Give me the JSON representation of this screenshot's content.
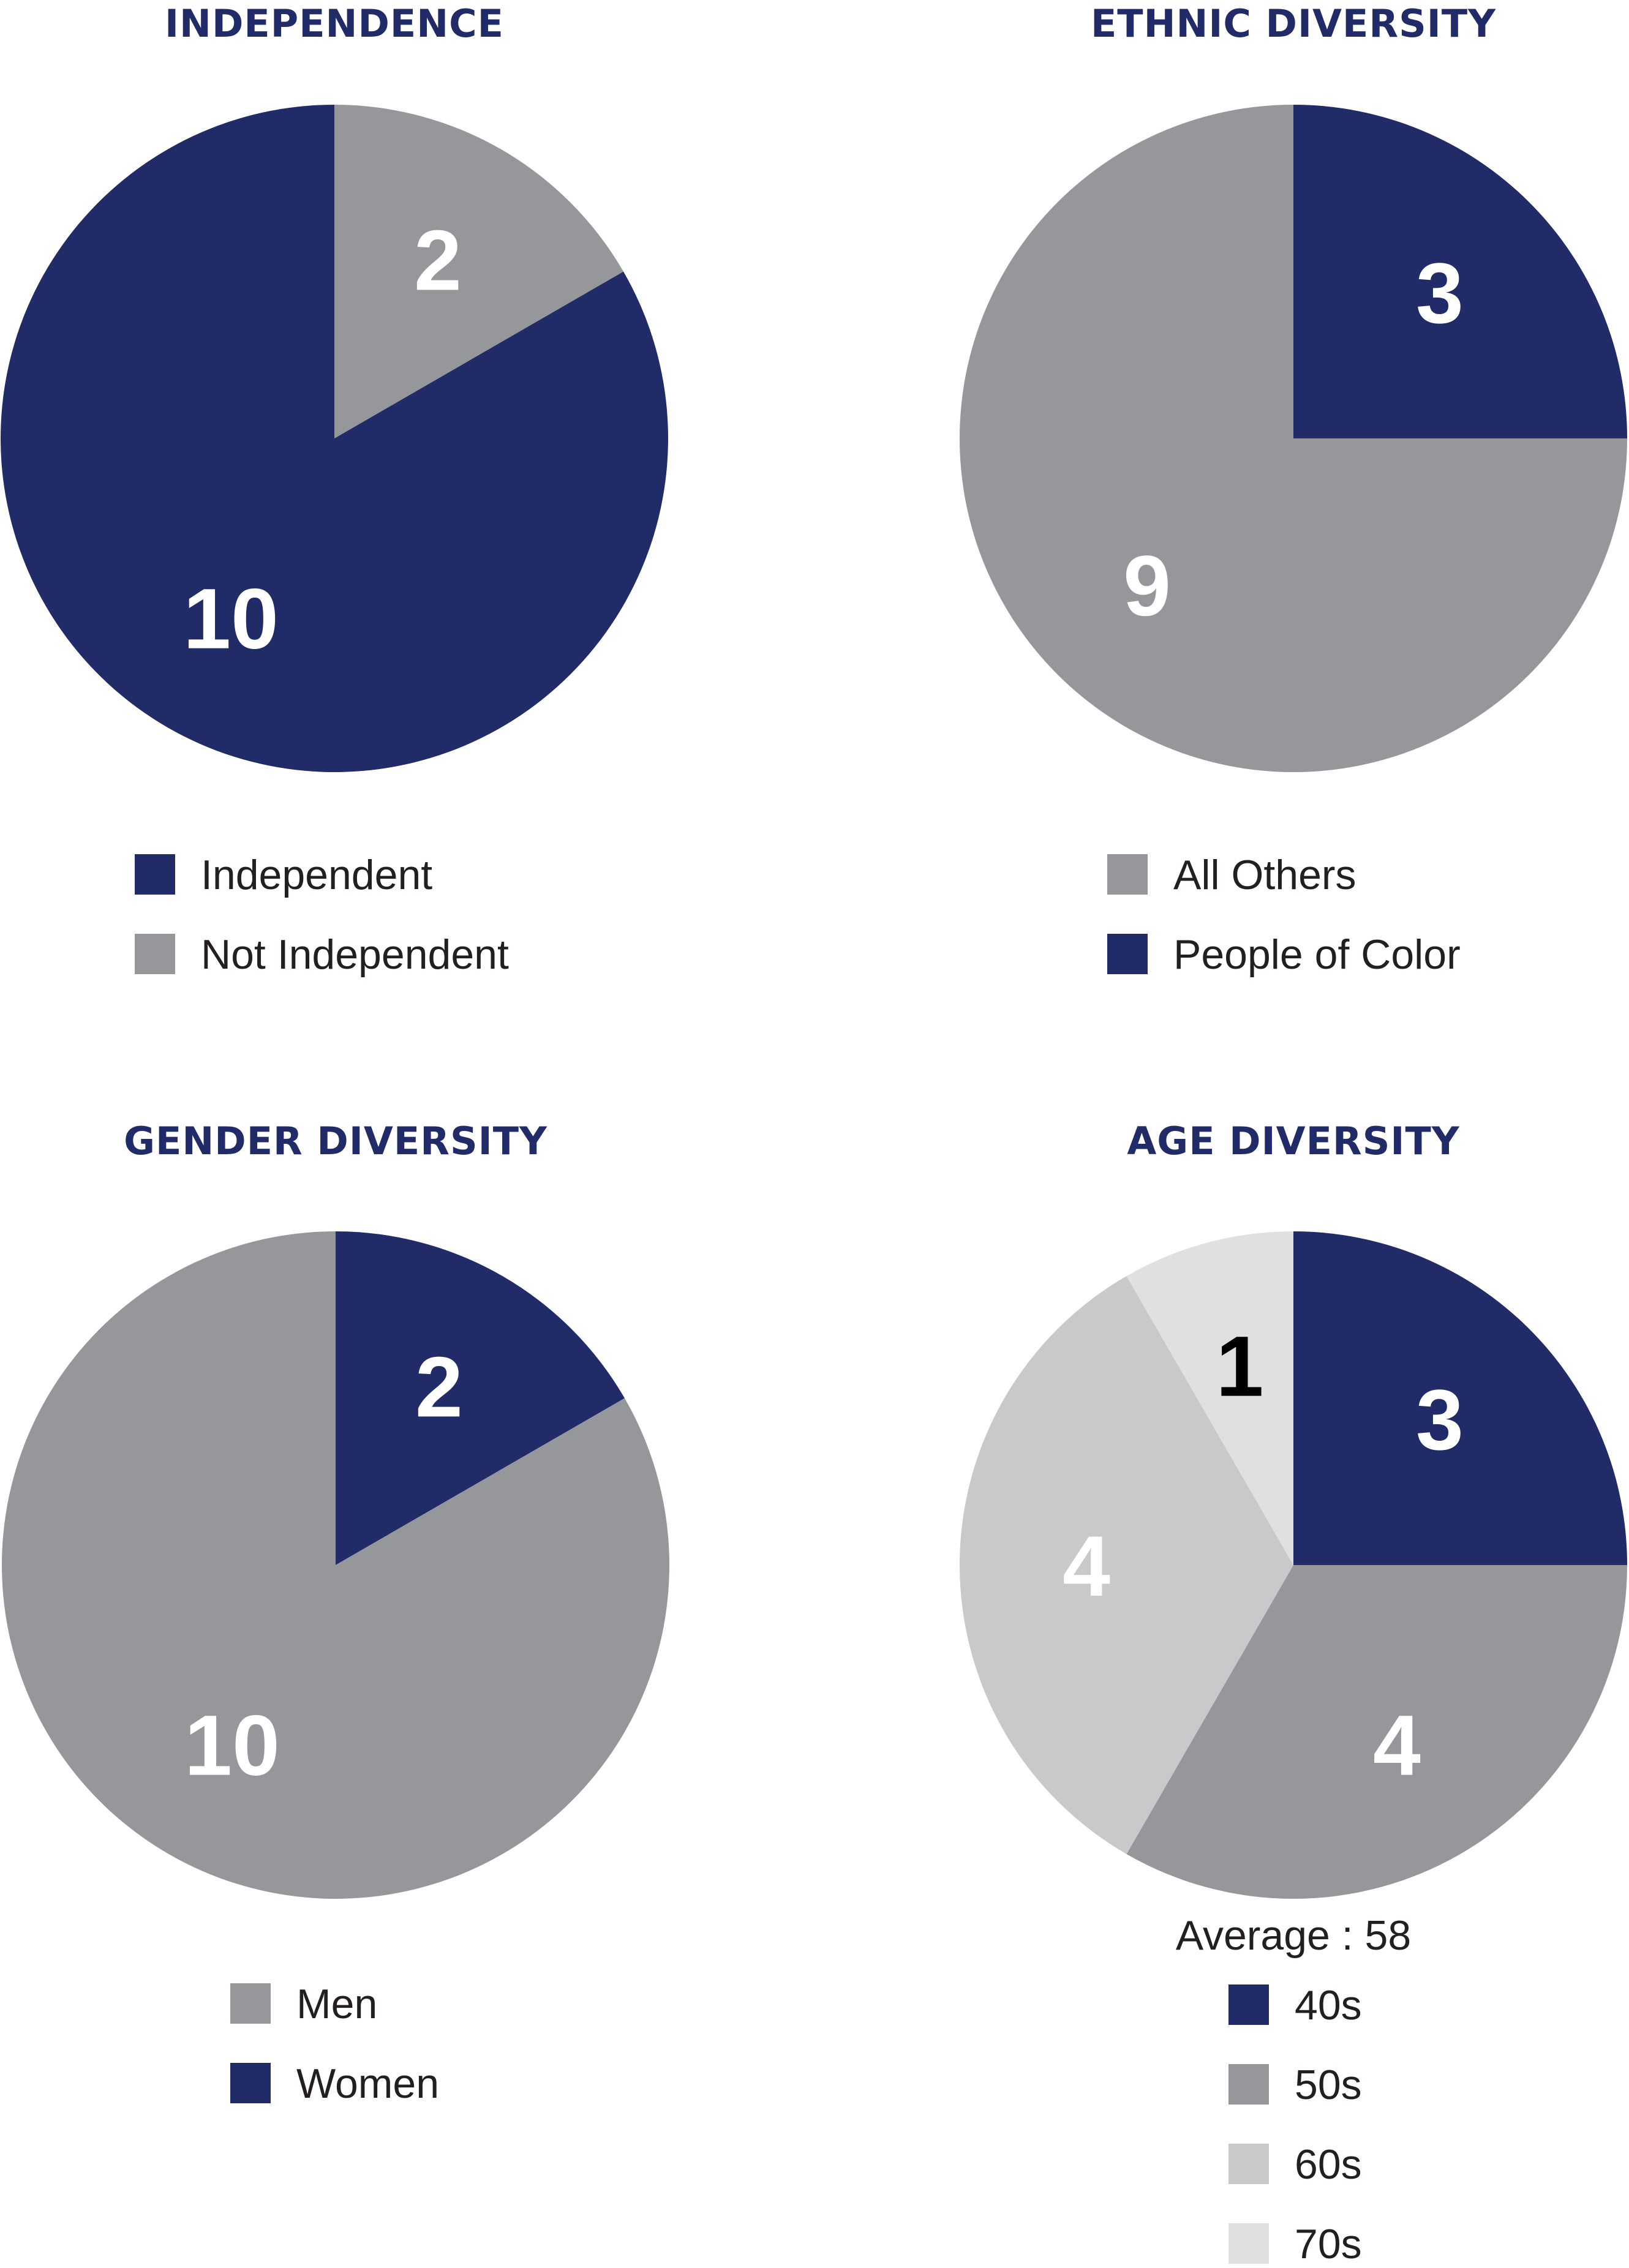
{
  "colors": {
    "navy": "#212b68",
    "gray": "#96979a",
    "light_gray": "#c8c9cb",
    "lighter_gray": "#e0e0e2",
    "label_white": "#ffffff",
    "label_black": "#000000",
    "title": "#212b68",
    "text": "#231f20"
  },
  "chart_data": [
    {
      "id": "independence",
      "type": "pie",
      "title": "INDEPENDENCE",
      "slices": [
        {
          "label": "Not Independent",
          "value": 2,
          "color": "#96979a",
          "label_color": "#ffffff"
        },
        {
          "label": "Independent",
          "value": 10,
          "color": "#212b68",
          "label_color": "#ffffff"
        }
      ],
      "legend": [
        {
          "label": "Independent",
          "color": "#212b68"
        },
        {
          "label": "Not Independent",
          "color": "#96979a"
        }
      ]
    },
    {
      "id": "ethnic",
      "type": "pie",
      "title": "ETHNIC DIVERSITY",
      "slices": [
        {
          "label": "People of Color",
          "value": 3,
          "color": "#212b68",
          "label_color": "#ffffff"
        },
        {
          "label": "All Others",
          "value": 9,
          "color": "#96979a",
          "label_color": "#ffffff"
        }
      ],
      "legend": [
        {
          "label": "All Others",
          "color": "#96979a"
        },
        {
          "label": "People of Color",
          "color": "#212b68"
        }
      ]
    },
    {
      "id": "gender",
      "type": "pie",
      "title": "GENDER DIVERSITY",
      "slices": [
        {
          "label": "Women",
          "value": 2,
          "color": "#212b68",
          "label_color": "#ffffff"
        },
        {
          "label": "Men",
          "value": 10,
          "color": "#96979a",
          "label_color": "#ffffff"
        }
      ],
      "legend": [
        {
          "label": "Men",
          "color": "#96979a"
        },
        {
          "label": "Women",
          "color": "#212b68"
        }
      ]
    },
    {
      "id": "age",
      "type": "pie",
      "title": "AGE DIVERSITY",
      "note": "Average : 58",
      "slices": [
        {
          "label": "40s",
          "value": 3,
          "color": "#212b68",
          "label_color": "#ffffff"
        },
        {
          "label": "50s",
          "value": 4,
          "color": "#96979a",
          "label_color": "#ffffff"
        },
        {
          "label": "60s",
          "value": 4,
          "color": "#c8c9cb",
          "label_color": "#ffffff"
        },
        {
          "label": "70s",
          "value": 1,
          "color": "#e0e0e2",
          "label_color": "#000000"
        }
      ],
      "legend": [
        {
          "label": "40s",
          "color": "#212b68"
        },
        {
          "label": "50s",
          "color": "#96979a"
        },
        {
          "label": "60s",
          "color": "#c8c9cb"
        },
        {
          "label": "70s",
          "color": "#e0e0e2"
        }
      ]
    }
  ]
}
